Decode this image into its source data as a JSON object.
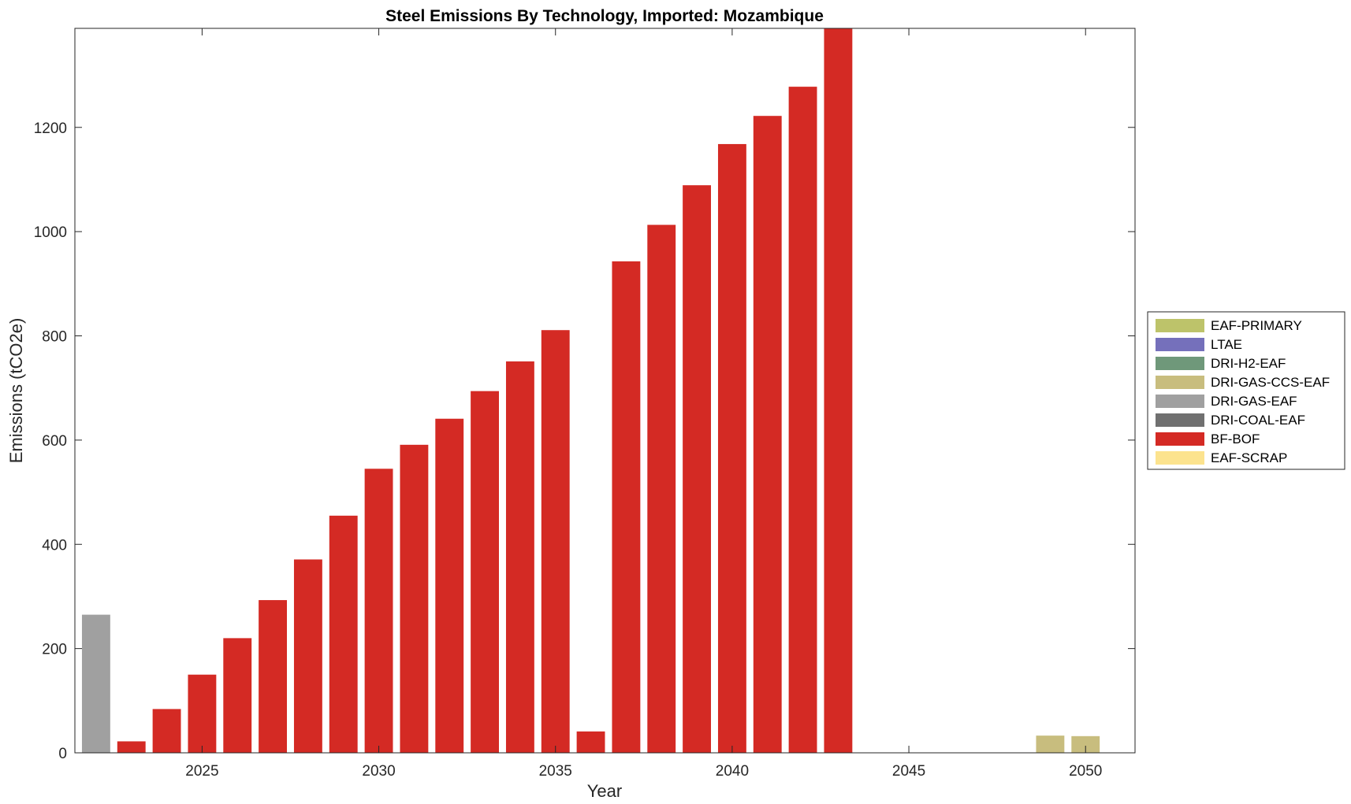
{
  "chart_data": {
    "type": "bar",
    "stacked": true,
    "title": "Steel Emissions By Technology, Imported: Mozambique",
    "xlabel": "Year",
    "ylabel": "Emissions (tCO2e)",
    "xlim": [
      2021.4,
      2051.4
    ],
    "ylim": [
      0,
      1390
    ],
    "xticks": [
      2025,
      2030,
      2035,
      2040,
      2045,
      2050
    ],
    "yticks": [
      0,
      200,
      400,
      600,
      800,
      1000,
      1200
    ],
    "grid": false,
    "legend_position": "right",
    "x": [
      2022,
      2023,
      2024,
      2025,
      2026,
      2027,
      2028,
      2029,
      2030,
      2031,
      2032,
      2033,
      2034,
      2035,
      2036,
      2037,
      2038,
      2039,
      2040,
      2041,
      2042,
      2043,
      2044,
      2045,
      2046,
      2047,
      2048,
      2049,
      2050
    ],
    "series": [
      {
        "name": "EAF-PRIMARY",
        "color": "#bdc36a",
        "values": [
          0,
          0,
          0,
          0,
          0,
          0,
          0,
          0,
          0,
          0,
          0,
          0,
          0,
          0,
          0,
          0,
          0,
          0,
          0,
          0,
          0,
          0,
          0,
          0,
          0,
          0,
          0,
          0,
          0
        ]
      },
      {
        "name": "LTAE",
        "color": "#7570bb",
        "values": [
          0,
          0,
          0,
          0,
          0,
          0,
          0,
          0,
          0,
          0,
          0,
          0,
          0,
          0,
          0,
          0,
          0,
          0,
          0,
          0,
          0,
          0,
          0,
          0,
          0,
          0,
          0,
          0,
          0
        ]
      },
      {
        "name": "DRI-H2-EAF",
        "color": "#6f987a",
        "values": [
          0,
          0,
          0,
          0,
          0,
          0,
          0,
          0,
          0,
          0,
          0,
          0,
          0,
          0,
          0,
          0,
          0,
          0,
          0,
          0,
          0,
          0,
          0,
          0,
          0,
          0,
          0,
          0,
          0
        ]
      },
      {
        "name": "DRI-GAS-CCS-EAF",
        "color": "#c8bd7e",
        "values": [
          0,
          0,
          0,
          0,
          0,
          0,
          0,
          0,
          0,
          0,
          0,
          0,
          0,
          0,
          0,
          0,
          0,
          0,
          0,
          0,
          0,
          0,
          0,
          0,
          0,
          0,
          0,
          33,
          32
        ]
      },
      {
        "name": "DRI-GAS-EAF",
        "color": "#a0a0a0",
        "values": [
          265,
          0,
          0,
          0,
          0,
          0,
          0,
          0,
          0,
          0,
          0,
          0,
          0,
          0,
          0,
          0,
          0,
          0,
          0,
          0,
          0,
          0,
          0,
          0,
          0,
          0,
          0,
          0,
          0
        ]
      },
      {
        "name": "DRI-COAL-EAF",
        "color": "#707070",
        "values": [
          0,
          0,
          0,
          0,
          0,
          0,
          0,
          0,
          0,
          0,
          0,
          0,
          0,
          0,
          0,
          0,
          0,
          0,
          0,
          0,
          0,
          0,
          0,
          0,
          0,
          0,
          0,
          0,
          0
        ]
      },
      {
        "name": "BF-BOF",
        "color": "#d42a24",
        "values": [
          0,
          22,
          84,
          150,
          220,
          293,
          371,
          455,
          545,
          591,
          641,
          694,
          751,
          811,
          41,
          943,
          1013,
          1089,
          1168,
          1222,
          1278,
          1390,
          0,
          0,
          0,
          0,
          0,
          0,
          0
        ]
      },
      {
        "name": "EAF-SCRAP",
        "color": "#fce38e",
        "values": [
          0,
          0,
          0,
          0,
          0,
          0,
          0,
          0,
          0,
          0,
          0,
          0,
          0,
          0,
          0,
          0,
          0,
          0,
          0,
          0,
          0,
          0,
          0,
          0,
          0,
          0,
          0,
          0,
          0
        ]
      }
    ]
  }
}
